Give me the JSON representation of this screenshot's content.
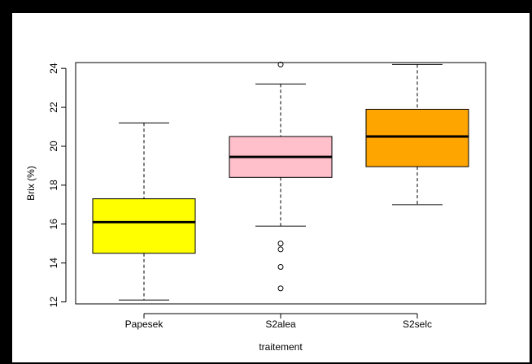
{
  "chart_data": {
    "type": "boxplot",
    "xlabel": "traitement",
    "ylabel": "Brix (%)",
    "ylim": [
      11.9,
      24.3
    ],
    "yticks": [
      12,
      14,
      16,
      18,
      20,
      22,
      24
    ],
    "ytick_labels": [
      "12",
      "14",
      "16",
      "18",
      "20",
      "22",
      "24"
    ],
    "categories": [
      "Papesek",
      "S2alea",
      "S2selc"
    ],
    "boxes": [
      {
        "category": "Papesek",
        "color": "#ffff00",
        "whisker_low": 12.1,
        "q1": 14.5,
        "median": 16.1,
        "q3": 17.3,
        "whisker_high": 21.2,
        "outliers": []
      },
      {
        "category": "S2alea",
        "color": "#ffc0cb",
        "whisker_low": 15.9,
        "q1": 18.4,
        "median": 19.45,
        "q3": 20.5,
        "whisker_high": 23.2,
        "outliers": [
          15.0,
          14.7,
          13.8,
          12.7,
          24.2
        ]
      },
      {
        "category": "S2selc",
        "color": "#ffa500",
        "whisker_low": 17.0,
        "q1": 18.95,
        "median": 20.5,
        "q3": 21.9,
        "whisker_high": 24.2,
        "outliers": []
      }
    ],
    "grid": false,
    "legend": "none"
  }
}
